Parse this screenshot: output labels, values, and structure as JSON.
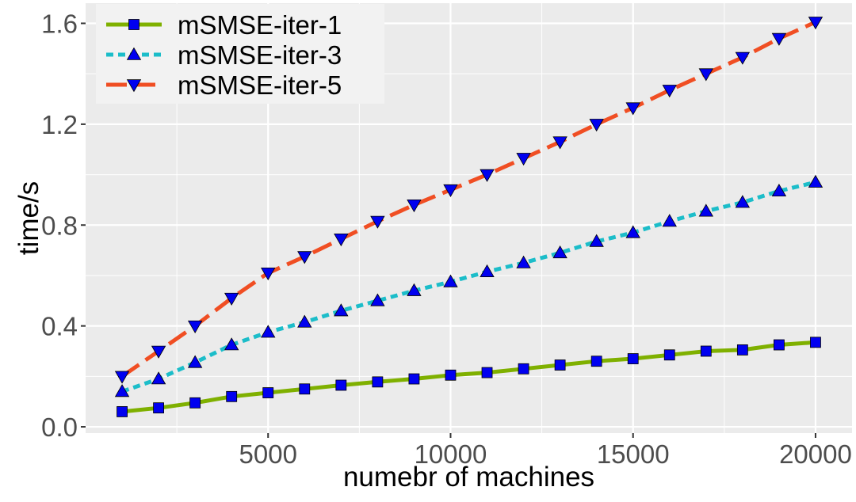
{
  "chart_data": {
    "type": "line",
    "title": "",
    "xlabel": "numebr of machines",
    "ylabel": "time/s",
    "xlim": [
      0,
      21000
    ],
    "ylim": [
      -0.025,
      1.68
    ],
    "x_ticks": [
      5000,
      10000,
      15000,
      20000
    ],
    "x_tick_labels": [
      "5000",
      "10000",
      "15000",
      "20000"
    ],
    "y_ticks": [
      0.0,
      0.4,
      0.8,
      1.2,
      1.6
    ],
    "y_tick_labels": [
      "0.0",
      "0.4",
      "0.8",
      "1.2",
      "1.6"
    ],
    "grid": true,
    "legend_position": "top-left",
    "x": [
      1000,
      2000,
      3000,
      4000,
      5000,
      6000,
      7000,
      8000,
      9000,
      10000,
      11000,
      12000,
      13000,
      14000,
      15000,
      16000,
      17000,
      18000,
      19000,
      20000
    ],
    "series": [
      {
        "name": "mSMSE-iter-1",
        "color": "#7fb000",
        "line_style": "solid",
        "marker": "square",
        "values": [
          0.06,
          0.075,
          0.095,
          0.12,
          0.135,
          0.15,
          0.165,
          0.178,
          0.19,
          0.205,
          0.215,
          0.23,
          0.245,
          0.26,
          0.27,
          0.285,
          0.3,
          0.305,
          0.325,
          0.335
        ]
      },
      {
        "name": "mSMSE-iter-3",
        "color": "#1cbdc9",
        "line_style": "dotted",
        "marker": "triangle-up",
        "values": [
          0.14,
          0.19,
          0.255,
          0.325,
          0.375,
          0.415,
          0.46,
          0.5,
          0.54,
          0.575,
          0.615,
          0.65,
          0.69,
          0.735,
          0.77,
          0.815,
          0.855,
          0.89,
          0.935,
          0.97
        ]
      },
      {
        "name": "mSMSE-iter-5",
        "color": "#f04e23",
        "line_style": "dashed",
        "marker": "triangle-down",
        "values": [
          0.2,
          0.3,
          0.4,
          0.51,
          0.61,
          0.675,
          0.745,
          0.815,
          0.88,
          0.94,
          1.0,
          1.065,
          1.13,
          1.2,
          1.265,
          1.335,
          1.4,
          1.465,
          1.54,
          1.605
        ]
      }
    ],
    "marker_fill": "#0000f0"
  }
}
